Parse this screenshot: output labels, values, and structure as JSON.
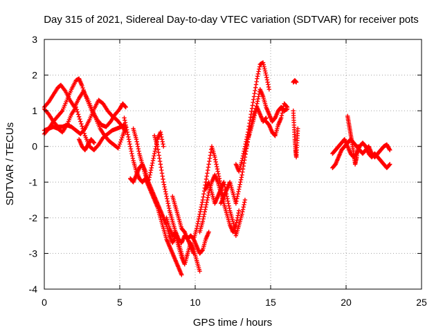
{
  "chart_data": {
    "type": "scatter",
    "title": "Day 315 of 2021, Sidereal Day-to-day VTEC variation (SDTVAR) for receiver pots",
    "xlabel": "GPS time / hours",
    "ylabel": "SDTVAR / TECUs",
    "xlim": [
      0,
      25
    ],
    "ylim": [
      -4,
      3
    ],
    "x_ticks": [
      0,
      5,
      10,
      15,
      20,
      25
    ],
    "y_ticks": [
      -4,
      -3,
      -2,
      -1,
      0,
      1,
      2,
      3
    ],
    "grid": true,
    "marker": "plus",
    "series": [
      {
        "name": "SDTVAR",
        "color": "#ff0000",
        "traces": [
          {
            "x": [
              0.0,
              0.3,
              0.6,
              0.9,
              1.1,
              1.4,
              1.7,
              2.0,
              2.3,
              2.6,
              2.9,
              3.2,
              3.5,
              3.8,
              4.1,
              4.4,
              4.7,
              5.0,
              5.2,
              5.4
            ],
            "y": [
              1.1,
              1.25,
              1.45,
              1.65,
              1.72,
              1.55,
              1.3,
              1.1,
              1.35,
              1.55,
              1.3,
              1.0,
              0.75,
              0.6,
              0.55,
              0.7,
              0.9,
              1.05,
              1.2,
              1.1
            ]
          },
          {
            "x": [
              0.0,
              0.3,
              0.6,
              0.9,
              1.2,
              1.5,
              1.8,
              2.1,
              2.3,
              2.5,
              2.8,
              3.1,
              3.4,
              3.7,
              4.0,
              4.3,
              4.6,
              4.9,
              5.2,
              5.4
            ],
            "y": [
              0.35,
              0.5,
              0.7,
              0.85,
              1.0,
              1.3,
              1.6,
              1.85,
              1.9,
              1.7,
              1.35,
              1.05,
              0.8,
              0.5,
              0.3,
              0.15,
              0.05,
              -0.05,
              0.3,
              0.55
            ]
          },
          {
            "x": [
              0.0,
              0.3,
              0.6,
              0.9,
              1.2,
              1.5,
              1.8,
              2.1,
              2.4,
              2.7,
              3.0,
              3.3,
              3.6,
              3.9,
              4.2,
              4.5,
              4.8,
              5.1,
              5.4
            ],
            "y": [
              1.05,
              0.9,
              0.7,
              0.55,
              0.55,
              0.6,
              0.55,
              0.45,
              0.35,
              0.5,
              0.75,
              1.05,
              1.3,
              1.2,
              1.0,
              0.85,
              0.75,
              0.6,
              0.4
            ]
          },
          {
            "x": [
              0.0,
              0.3,
              0.6,
              0.9,
              1.2,
              1.5,
              1.8,
              2.1,
              2.4,
              2.7,
              3.0,
              3.3,
              3.6,
              3.9,
              4.2,
              4.5,
              4.8,
              5.1,
              5.3
            ],
            "y": [
              0.45,
              0.5,
              0.55,
              0.5,
              0.4,
              0.6,
              0.9,
              1.1,
              0.7,
              0.3,
              0.0,
              -0.1,
              0.05,
              0.25,
              0.35,
              0.45,
              0.5,
              0.55,
              0.6
            ]
          },
          {
            "x": [
              2.3,
              2.5,
              2.7,
              2.9,
              3.1,
              3.3
            ],
            "y": [
              0.2,
              0.0,
              -0.1,
              0.05,
              0.2,
              0.1
            ]
          },
          {
            "x": [
              5.3,
              5.5,
              5.7,
              5.9,
              6.1,
              6.3,
              6.5,
              6.7,
              6.9,
              7.1,
              7.3,
              7.5,
              7.7,
              7.9,
              8.1,
              8.3,
              8.5,
              8.7,
              8.9,
              9.1
            ],
            "y": [
              0.8,
              0.4,
              0.0,
              -0.4,
              -0.7,
              -0.9,
              -1.0,
              -0.9,
              -1.1,
              -1.3,
              -1.5,
              -1.7,
              -2.0,
              -2.3,
              -2.6,
              -2.8,
              -3.0,
              -3.2,
              -3.4,
              -3.6
            ]
          },
          {
            "x": [
              5.7,
              5.9,
              6.1,
              6.3,
              6.5,
              6.7,
              6.9,
              7.1,
              7.3,
              7.5,
              7.7,
              7.9,
              8.1,
              8.3,
              8.5,
              8.7,
              8.9,
              9.1,
              9.3,
              9.5
            ],
            "y": [
              -0.9,
              -1.0,
              -0.8,
              -0.6,
              -0.5,
              -0.7,
              -1.0,
              -1.2,
              -1.4,
              -1.6,
              -1.8,
              -2.0,
              -2.2,
              -2.5,
              -2.7,
              -2.5,
              -2.8,
              -3.1,
              -3.3,
              -3.0
            ]
          },
          {
            "x": [
              5.9,
              6.1,
              6.3,
              6.5,
              6.7,
              6.9,
              7.1,
              7.3,
              7.5,
              7.7,
              7.9
            ],
            "y": [
              0.5,
              0.2,
              -0.2,
              -0.5,
              -0.8,
              -1.0,
              -0.6,
              -0.2,
              0.2,
              0.4,
              0.0
            ]
          },
          {
            "x": [
              7.3,
              7.5,
              7.7,
              7.9,
              8.1,
              8.3,
              8.5,
              8.7,
              8.9,
              9.1,
              9.3,
              9.5,
              9.7,
              9.9
            ],
            "y": [
              0.3,
              0.0,
              -0.5,
              -1.0,
              -1.4,
              -1.8,
              -2.1,
              -2.4,
              -2.6,
              -2.7,
              -2.5,
              -2.6,
              -2.8,
              -3.0
            ]
          },
          {
            "x": [
              8.1,
              8.3,
              8.5,
              8.7,
              8.9,
              9.1,
              9.3,
              9.5,
              9.7,
              9.9,
              10.1,
              10.3
            ],
            "y": [
              -2.0,
              -2.3,
              -2.5,
              -2.4,
              -2.7,
              -3.0,
              -3.3,
              -3.0,
              -2.7,
              -2.9,
              -3.2,
              -3.5
            ]
          },
          {
            "x": [
              8.5,
              8.7,
              8.9,
              9.1,
              9.3,
              9.5,
              9.7,
              9.9,
              10.1,
              10.3,
              10.5,
              10.7,
              10.9
            ],
            "y": [
              -1.4,
              -1.7,
              -2.0,
              -2.3,
              -2.4,
              -2.6,
              -2.5,
              -2.6,
              -2.8,
              -3.0,
              -2.9,
              -2.6,
              -2.4
            ]
          },
          {
            "x": [
              9.9,
              10.1,
              10.3,
              10.5,
              10.7,
              10.9,
              11.1,
              11.3,
              11.5,
              11.7,
              11.9
            ],
            "y": [
              -2.6,
              -2.3,
              -1.9,
              -1.5,
              -1.0,
              -0.5,
              0.0,
              -0.3,
              -0.7,
              -1.1,
              -1.5
            ]
          },
          {
            "x": [
              10.3,
              10.5,
              10.7,
              10.9,
              11.1,
              11.3,
              11.5,
              11.7,
              11.9,
              12.1,
              12.3,
              12.5,
              12.7,
              12.9
            ],
            "y": [
              -2.4,
              -2.1,
              -1.7,
              -1.3,
              -1.0,
              -0.8,
              -1.0,
              -1.3,
              -1.6,
              -1.9,
              -2.2,
              -2.4,
              -2.2,
              -1.8
            ]
          },
          {
            "x": [
              10.7,
              10.9,
              11.1,
              11.3,
              11.5,
              11.7,
              11.9,
              12.1,
              12.3,
              12.5,
              12.7,
              12.9,
              13.1,
              13.3
            ],
            "y": [
              -1.2,
              -1.0,
              -1.3,
              -1.6,
              -1.4,
              -1.2,
              -1.0,
              -1.4,
              -1.8,
              -2.1,
              -2.5,
              -2.2,
              -1.9,
              -1.5
            ]
          },
          {
            "x": [
              11.7,
              11.9,
              12.1,
              12.3,
              12.5,
              12.7,
              12.9,
              13.1,
              13.3,
              13.5,
              13.7,
              13.9,
              14.1,
              14.3,
              14.5,
              14.7
            ],
            "y": [
              -1.6,
              -1.4,
              -1.2,
              -1.0,
              -1.3,
              -1.6,
              -1.2,
              -0.8,
              -0.3,
              0.2,
              0.6,
              0.9,
              1.1,
              0.9,
              0.7,
              0.8
            ]
          },
          {
            "x": [
              12.7,
              12.9,
              13.1,
              13.3,
              13.5,
              13.7,
              13.9,
              14.1,
              14.3,
              14.5,
              14.7,
              14.9
            ],
            "y": [
              -0.5,
              -0.7,
              -0.4,
              0.0,
              0.4,
              0.9,
              1.4,
              1.9,
              2.3,
              2.35,
              2.0,
              1.6
            ]
          },
          {
            "x": [
              13.3,
              13.5,
              13.7,
              13.9,
              14.1,
              14.3,
              14.5,
              14.7,
              14.9,
              15.1,
              15.3,
              15.5,
              15.7,
              15.9,
              16.1
            ],
            "y": [
              -0.2,
              0.2,
              0.5,
              0.8,
              1.2,
              1.6,
              1.4,
              1.1,
              0.9,
              0.7,
              0.8,
              1.0,
              1.1,
              1.0,
              1.05
            ]
          },
          {
            "x": [
              14.7,
              14.9,
              15.1,
              15.3,
              15.5,
              15.7,
              15.9,
              16.1
            ],
            "y": [
              0.7,
              0.6,
              0.4,
              0.3,
              0.6,
              0.8,
              1.2,
              1.1
            ]
          },
          {
            "x": [
              16.5,
              16.6,
              16.7
            ],
            "y": [
              1.8,
              1.85,
              1.8
            ]
          },
          {
            "x": [
              16.5,
              16.55,
              16.6,
              16.65,
              16.7,
              16.75,
              16.8
            ],
            "y": [
              1.0,
              0.6,
              0.2,
              -0.1,
              -0.3,
              0.1,
              0.5
            ]
          },
          {
            "x": [
              19.1,
              19.3,
              19.5,
              19.7,
              19.9,
              20.1,
              20.3,
              20.5,
              20.7,
              20.9,
              21.1,
              21.3,
              21.5,
              21.7,
              21.9,
              22.1,
              22.3,
              22.5,
              22.7,
              22.9
            ],
            "y": [
              -0.6,
              -0.5,
              -0.3,
              -0.1,
              0.0,
              0.1,
              0.2,
              0.1,
              0.0,
              -0.1,
              -0.2,
              -0.1,
              0.0,
              -0.2,
              -0.3,
              -0.2,
              -0.1,
              0.0,
              0.05,
              -0.1
            ]
          },
          {
            "x": [
              19.1,
              19.3,
              19.5,
              19.7,
              19.9,
              20.1,
              20.3,
              20.5,
              20.7,
              20.9,
              21.1,
              21.3,
              21.5,
              21.7,
              21.9,
              22.1,
              22.3,
              22.5,
              22.7,
              22.9
            ],
            "y": [
              -0.2,
              -0.1,
              0.0,
              0.1,
              0.2,
              0.0,
              -0.2,
              -0.3,
              -0.2,
              0.0,
              0.1,
              0.0,
              -0.2,
              -0.3,
              -0.2,
              -0.3,
              -0.4,
              -0.5,
              -0.6,
              -0.5
            ]
          },
          {
            "x": [
              20.1,
              20.2,
              20.3,
              20.4,
              20.5,
              20.6,
              20.7,
              20.8
            ],
            "y": [
              0.85,
              0.6,
              0.35,
              0.1,
              -0.2,
              -0.5,
              -0.3,
              0.0
            ]
          }
        ]
      }
    ]
  }
}
